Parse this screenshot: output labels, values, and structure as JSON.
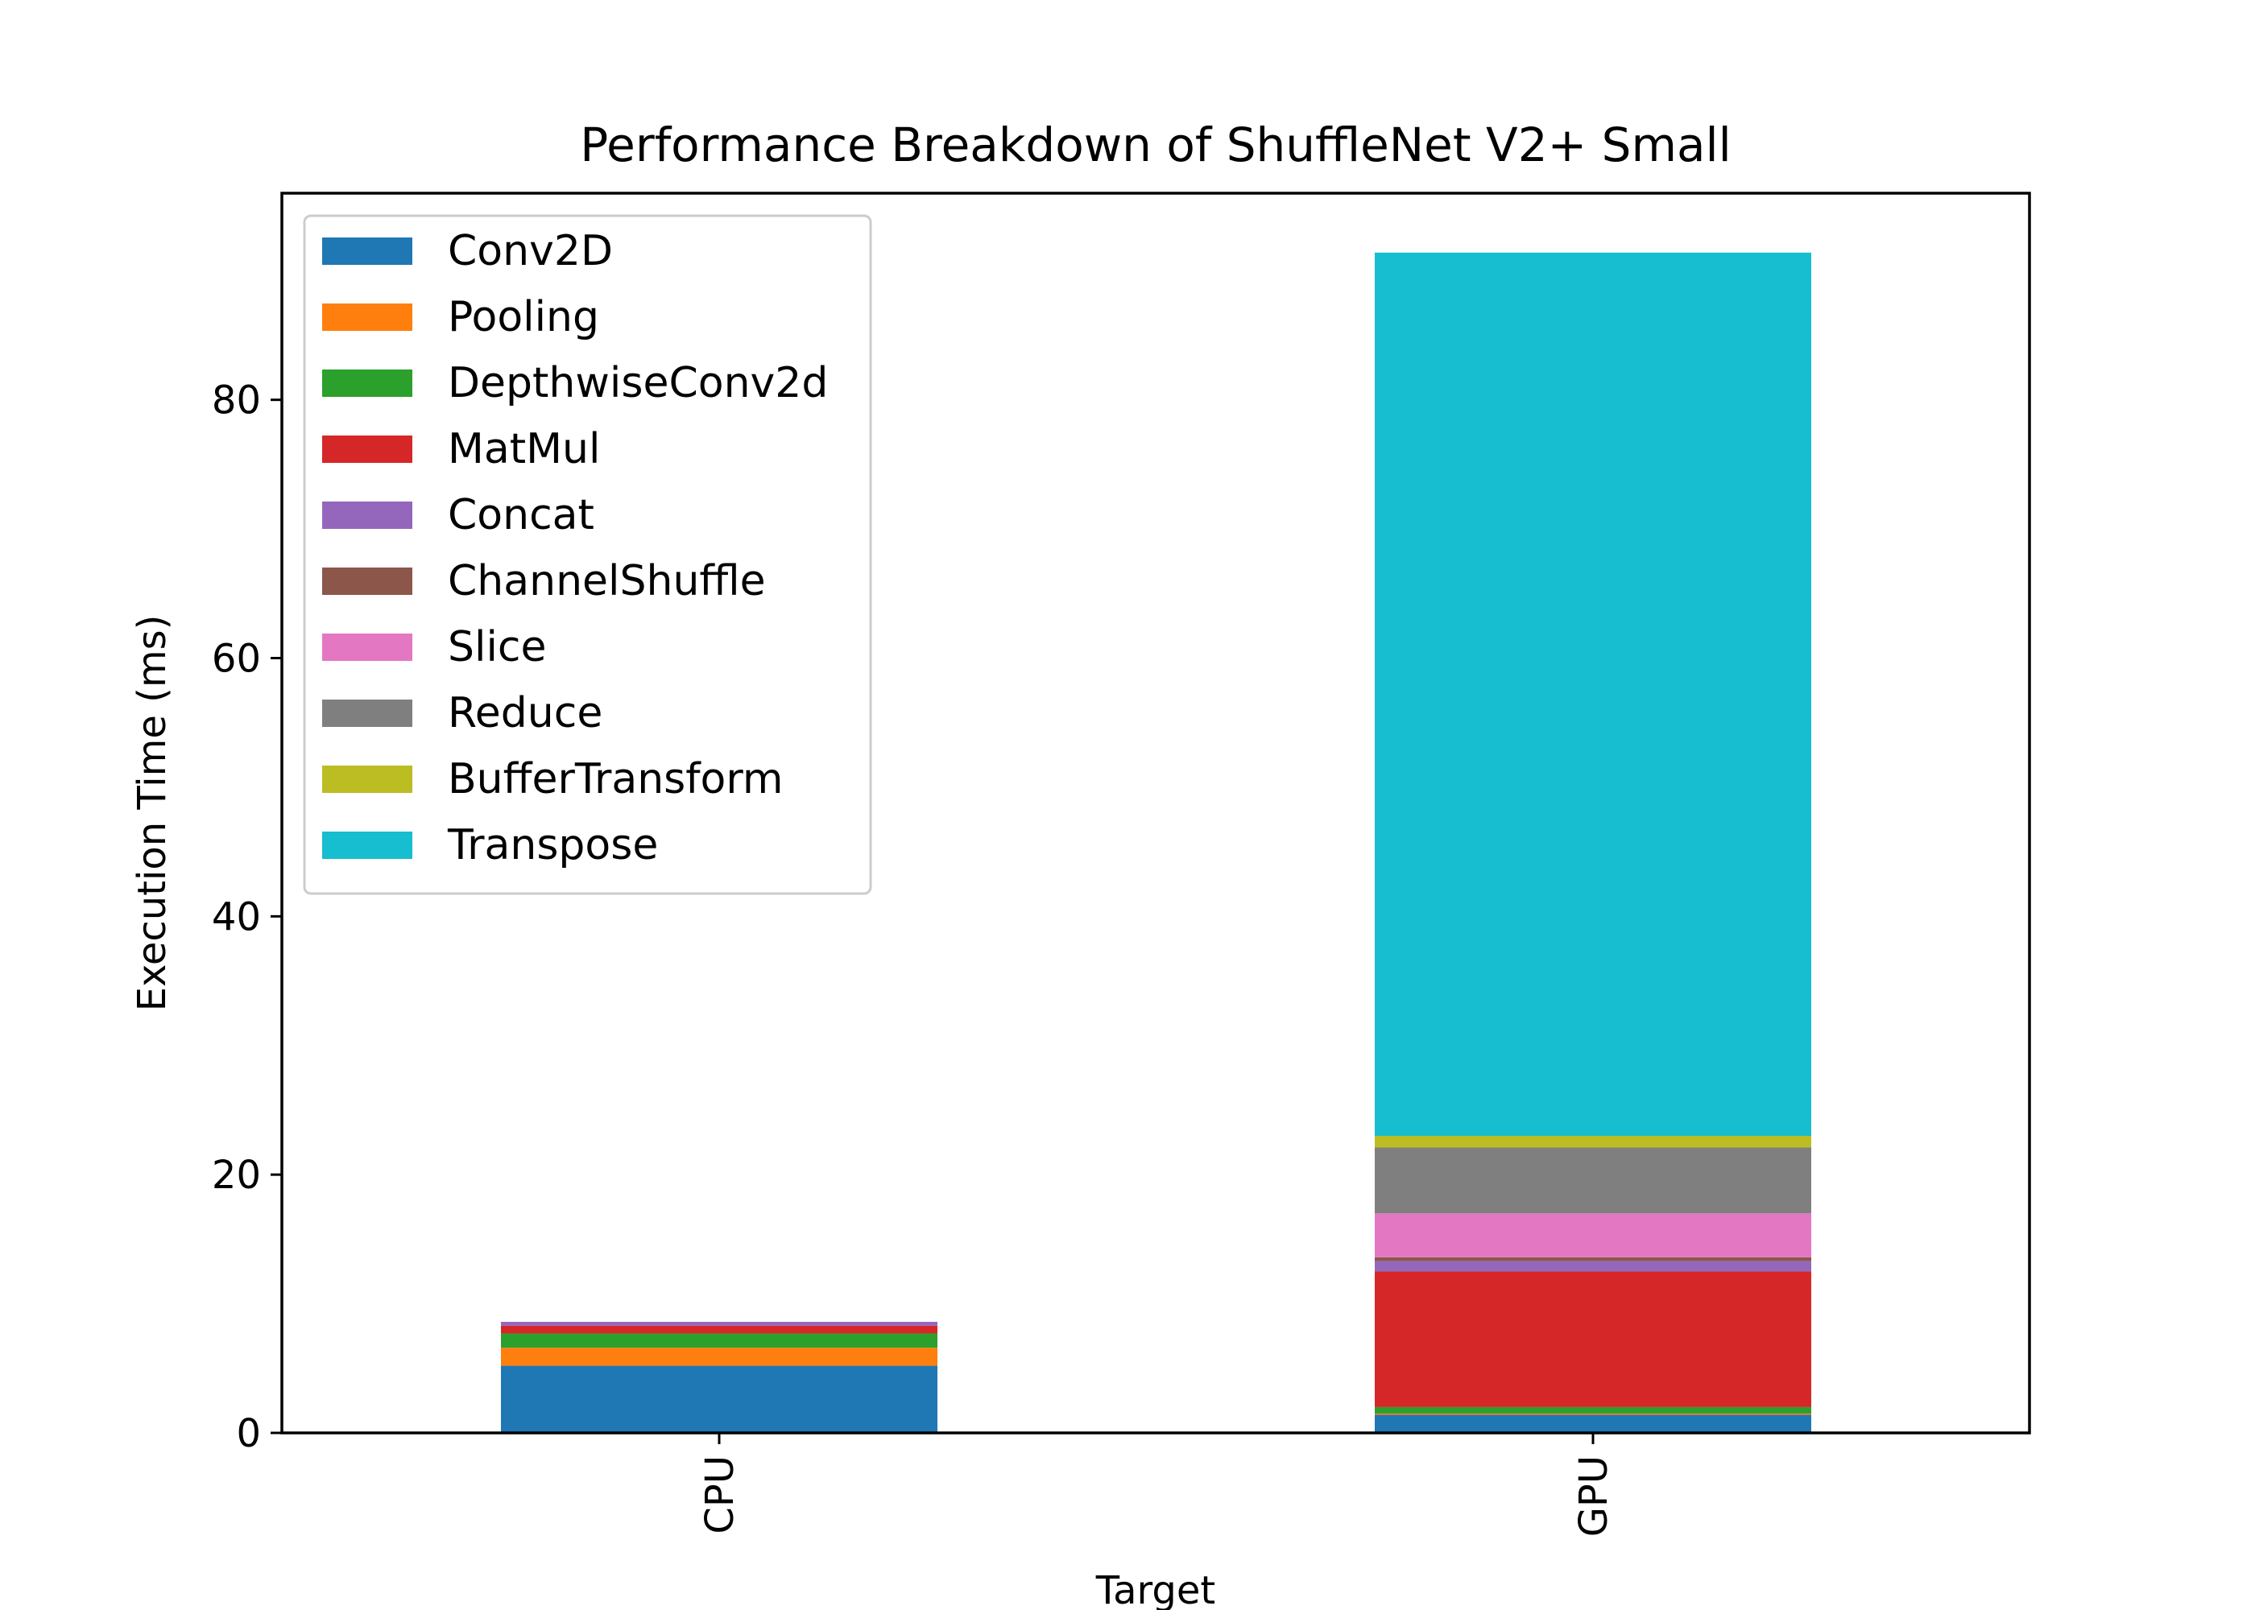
{
  "chart_data": {
    "type": "bar",
    "stacked": true,
    "title": "Performance Breakdown of ShuffleNet V2+ Small",
    "xlabel": "Target",
    "ylabel": "Execution Time (ms)",
    "categories": [
      "CPU",
      "GPU"
    ],
    "ylim": [
      0,
      96
    ],
    "yticks": [
      "0",
      "20",
      "40",
      "60",
      "80"
    ],
    "grid": false,
    "legend_position": "top-left",
    "series": [
      {
        "name": "Conv2D",
        "color": "#1f77b4",
        "values": [
          5.2,
          1.4
        ]
      },
      {
        "name": "Pooling",
        "color": "#ff7f0e",
        "values": [
          1.4,
          0.1
        ]
      },
      {
        "name": "DepthwiseConv2d",
        "color": "#2ca02c",
        "values": [
          1.1,
          0.5
        ]
      },
      {
        "name": "MatMul",
        "color": "#d62728",
        "values": [
          0.6,
          10.5
        ]
      },
      {
        "name": "Concat",
        "color": "#9467bd",
        "values": [
          0.3,
          0.8
        ]
      },
      {
        "name": "ChannelShuffle",
        "color": "#8c564b",
        "values": [
          0.0,
          0.3
        ]
      },
      {
        "name": "Slice",
        "color": "#e377c2",
        "values": [
          0.0,
          3.4
        ]
      },
      {
        "name": "Reduce",
        "color": "#7f7f7f",
        "values": [
          0.0,
          5.1
        ]
      },
      {
        "name": "BufferTransform",
        "color": "#bcbd22",
        "values": [
          0.0,
          0.9
        ]
      },
      {
        "name": "Transpose",
        "color": "#17becf",
        "values": [
          0.0,
          68.4
        ]
      }
    ]
  }
}
